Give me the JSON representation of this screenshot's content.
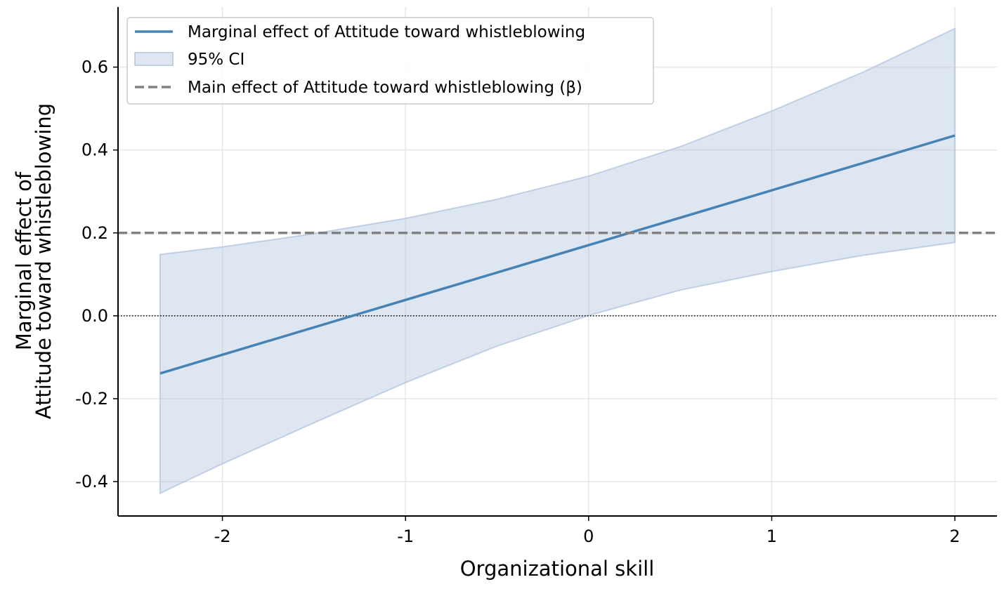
{
  "chart_data": {
    "type": "line",
    "xlabel": "Organizational skill",
    "ylabel_lines": [
      "Marginal effect of",
      "Attitude toward whistleblowing"
    ],
    "xlim": [
      -2.57,
      2.23
    ],
    "ylim": [
      -0.483,
      0.745
    ],
    "x_ticks": [
      -2,
      -1,
      0,
      1,
      2
    ],
    "x_tick_labels": [
      "-2",
      "-1",
      "0",
      "1",
      "2"
    ],
    "y_ticks": [
      -0.4,
      -0.2,
      0.0,
      0.2,
      0.4,
      0.6
    ],
    "y_tick_labels": [
      "-0.4",
      "-0.2",
      "0.0",
      "0.2",
      "0.4",
      "0.6"
    ],
    "grid": true,
    "legend_position": "top-left",
    "series": [
      {
        "name": "Marginal effect of Attitude toward whistleblowing",
        "kind": "line",
        "color": "#4682B4",
        "x": [
          -2.34,
          2.0
        ],
        "y": [
          -0.139,
          0.435
        ]
      },
      {
        "name": "95% CI",
        "kind": "band",
        "color": "#B0C4DE",
        "x": [
          -2.34,
          -2.0,
          -1.5,
          -1.0,
          -0.5,
          0.0,
          0.5,
          1.0,
          1.5,
          2.0
        ],
        "lower": [
          -0.428,
          -0.357,
          -0.258,
          -0.161,
          -0.073,
          0.001,
          0.062,
          0.107,
          0.146,
          0.177
        ],
        "upper": [
          0.148,
          0.166,
          0.198,
          0.235,
          0.281,
          0.337,
          0.408,
          0.494,
          0.588,
          0.693
        ]
      },
      {
        "name": "Main effect of Attitude toward whistleblowing (β)",
        "kind": "hline",
        "color": "#808080",
        "y": 0.2
      }
    ],
    "reference_line": {
      "y": 0.0,
      "style": "dotted",
      "color": "#000000"
    }
  }
}
